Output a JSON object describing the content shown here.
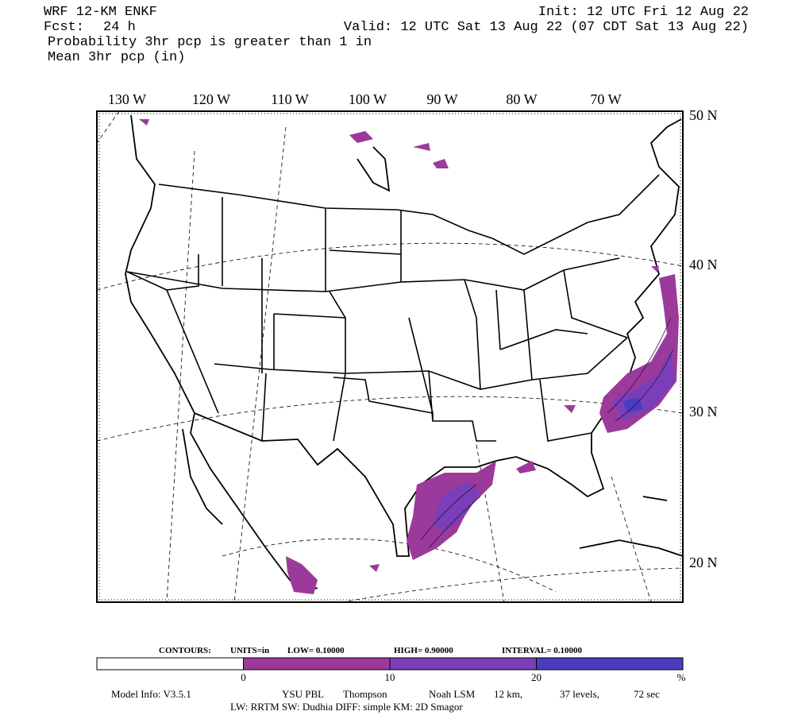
{
  "header": {
    "model": "WRF 12-KM ENKF",
    "init": "Init: 12 UTC Fri 12 Aug 22",
    "fcst_label": "Fcst:",
    "fcst_value": "24 h",
    "valid": "Valid: 12 UTC Sat 13 Aug 22 (07 CDT Sat 13 Aug 22)",
    "field1": "Probability 3hr pcp is greater than 1 in",
    "field2": "Mean 3hr pcp (in)"
  },
  "map": {
    "longitudes": [
      "130 W",
      "120 W",
      "110 W",
      "100 W",
      "90 W",
      "80 W",
      "70 W"
    ],
    "latitudes": [
      "50 N",
      "40 N",
      "30 N",
      "20 N"
    ]
  },
  "contours": {
    "label": "CONTOURS:",
    "units": "UNITS=in",
    "low": "LOW= 0.10000",
    "high": "HIGH= 0.90000",
    "interval": "INTERVAL= 0.10000"
  },
  "colorbar": {
    "colors": [
      "#ffffff",
      "#9b3a9b",
      "#7a3fb8",
      "#4b3dc0"
    ],
    "ticks": [
      0,
      10,
      20
    ],
    "unit": "%"
  },
  "footer": {
    "model_info": "Model Info: V3.5.1",
    "pbl": "YSU PBL",
    "mp": "Thompson",
    "lsm": "Noah LSM",
    "res": "12 km,",
    "levels": "37 levels,",
    "step": "72 sec",
    "line2": "LW: RRTM SW: Dudhia  DIFF: simple KM: 2D Smagor"
  }
}
